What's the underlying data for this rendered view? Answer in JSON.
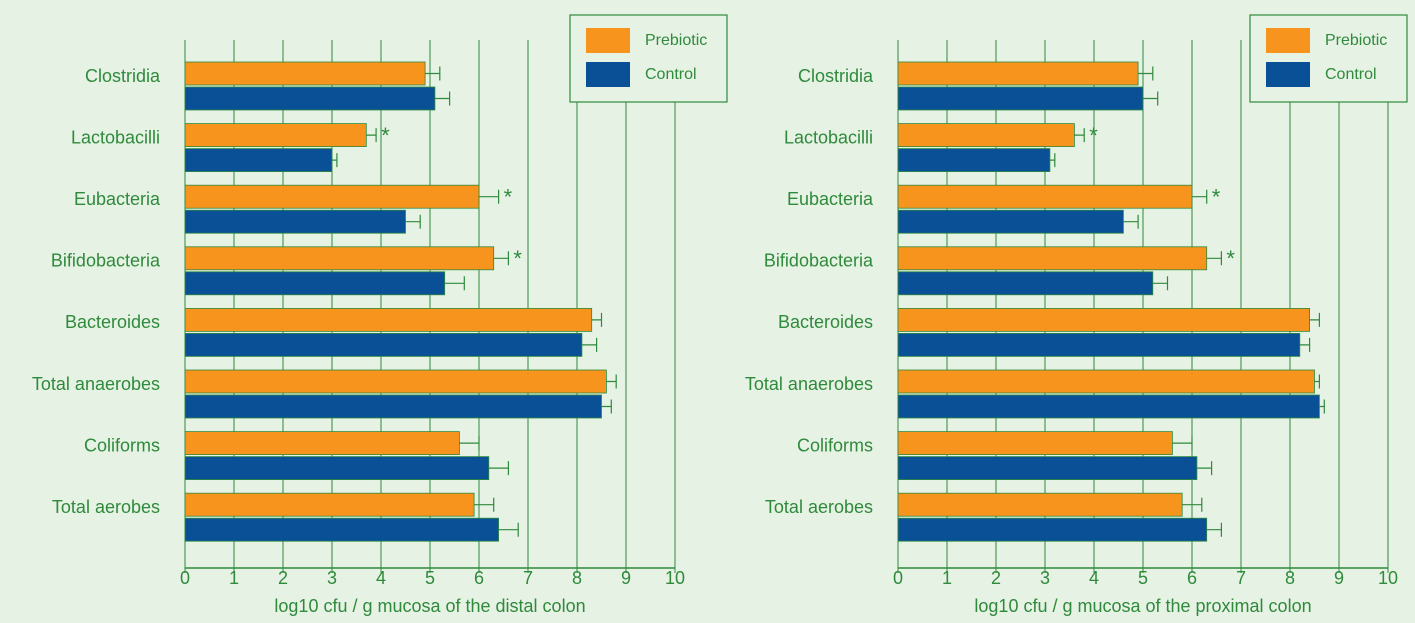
{
  "chart_data": [
    {
      "type": "bar",
      "orientation": "horizontal",
      "grid": true,
      "xlabel": "log10 cfu / g mucosa of the distal colon",
      "categories": [
        "Clostridia",
        "Lactobacilli",
        "Eubacteria",
        "Bifidobacteria",
        "Bacteroides",
        "Total anaerobes",
        "Coliforms",
        "Total aerobes"
      ],
      "series": [
        {
          "name": "Prebiotic",
          "color": "#f7941d",
          "values": [
            4.9,
            3.7,
            6.0,
            6.3,
            8.3,
            8.6,
            5.6,
            5.9
          ],
          "errors": [
            0.3,
            0.2,
            0.4,
            0.3,
            0.2,
            0.2,
            0.4,
            0.4
          ],
          "significance": [
            null,
            "*",
            "*",
            "*",
            null,
            null,
            null,
            null
          ]
        },
        {
          "name": "Control",
          "color": "#0a5096",
          "values": [
            5.1,
            3.0,
            4.5,
            5.3,
            8.1,
            8.5,
            6.2,
            6.4
          ],
          "errors": [
            0.3,
            0.1,
            0.3,
            0.4,
            0.3,
            0.2,
            0.4,
            0.4
          ]
        }
      ],
      "xlim": [
        0,
        10
      ],
      "xticks": [
        0,
        1,
        2,
        3,
        4,
        5,
        6,
        7,
        8,
        9,
        10
      ]
    },
    {
      "type": "bar",
      "orientation": "horizontal",
      "grid": true,
      "xlabel": "log10 cfu / g mucosa of the proximal colon",
      "categories": [
        "Clostridia",
        "Lactobacilli",
        "Eubacteria",
        "Bifidobacteria",
        "Bacteroides",
        "Total anaerobes",
        "Coliforms",
        "Total aerobes"
      ],
      "series": [
        {
          "name": "Prebiotic",
          "color": "#f7941d",
          "values": [
            4.9,
            3.6,
            6.0,
            6.3,
            8.4,
            8.5,
            5.6,
            5.8
          ],
          "errors": [
            0.3,
            0.2,
            0.3,
            0.3,
            0.2,
            0.1,
            0.4,
            0.4
          ],
          "significance": [
            null,
            "*",
            "*",
            "*",
            null,
            null,
            null,
            null
          ]
        },
        {
          "name": "Control",
          "color": "#0a5096",
          "values": [
            5.0,
            3.1,
            4.6,
            5.2,
            8.2,
            8.6,
            6.1,
            6.3
          ],
          "errors": [
            0.3,
            0.1,
            0.3,
            0.3,
            0.2,
            0.1,
            0.3,
            0.3
          ]
        }
      ],
      "xlim": [
        0,
        10
      ],
      "xticks": [
        0,
        1,
        2,
        3,
        4,
        5,
        6,
        7,
        8,
        9,
        10
      ]
    }
  ]
}
